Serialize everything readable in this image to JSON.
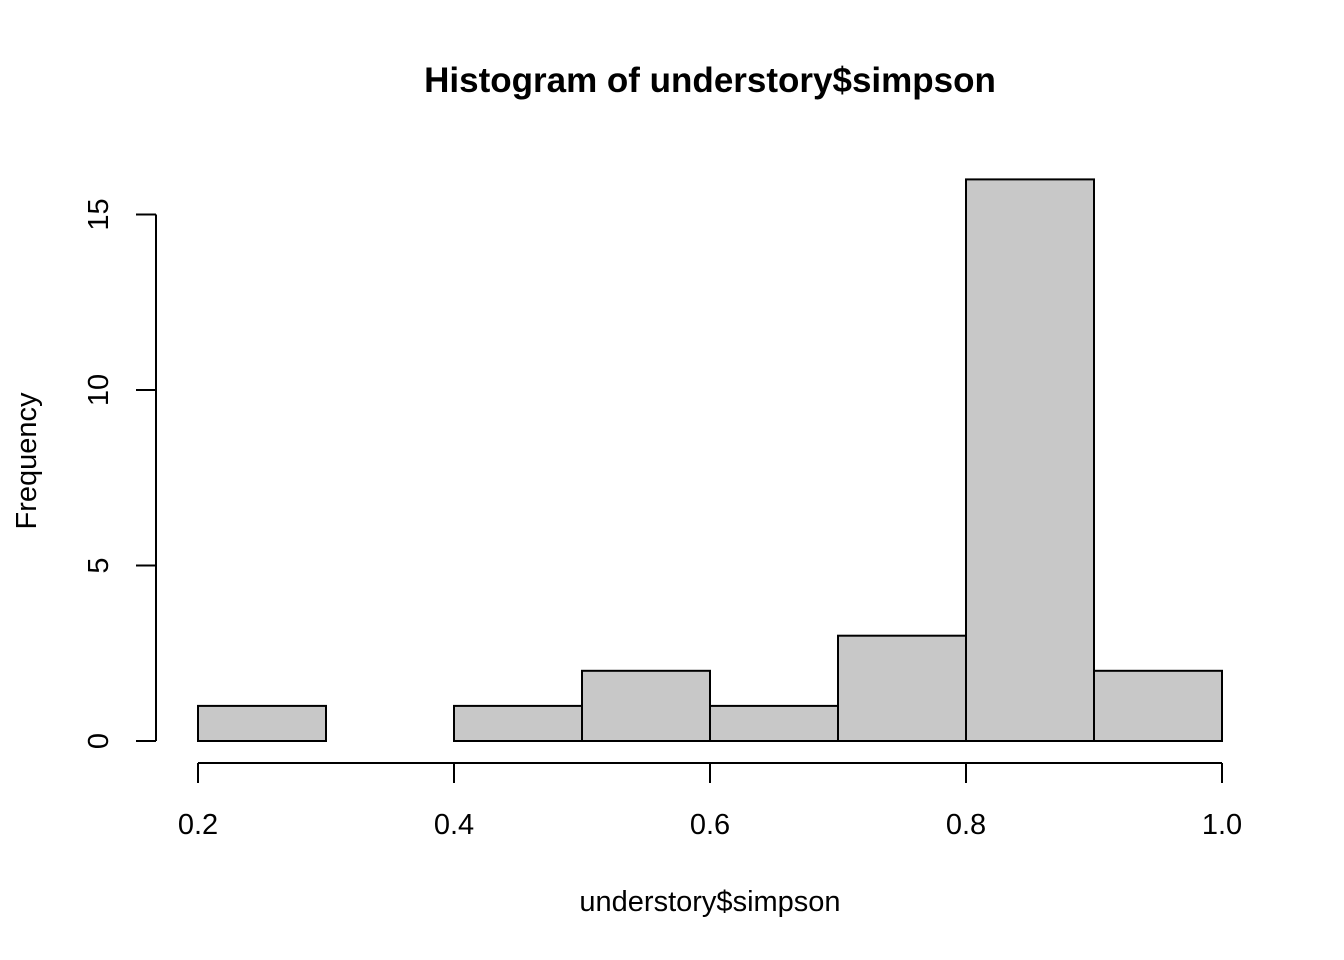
{
  "chart_data": {
    "type": "bar",
    "title": "Histogram of understory$simpson",
    "xlabel": "understory$simpson",
    "ylabel": "Frequency",
    "bins": [
      {
        "start": 0.2,
        "end": 0.3,
        "count": 1
      },
      {
        "start": 0.3,
        "end": 0.4,
        "count": 0
      },
      {
        "start": 0.4,
        "end": 0.5,
        "count": 1
      },
      {
        "start": 0.5,
        "end": 0.6,
        "count": 2
      },
      {
        "start": 0.6,
        "end": 0.7,
        "count": 1
      },
      {
        "start": 0.7,
        "end": 0.8,
        "count": 3
      },
      {
        "start": 0.8,
        "end": 0.9,
        "count": 16
      },
      {
        "start": 0.9,
        "end": 1.0,
        "count": 2
      }
    ],
    "xlim": [
      0.2,
      1.0
    ],
    "ylim": [
      0,
      16
    ],
    "x_ticks": [
      0.2,
      0.4,
      0.6,
      0.8,
      1.0
    ],
    "x_tick_labels": [
      "0.2",
      "0.4",
      "0.6",
      "0.8",
      "1.0"
    ],
    "y_ticks": [
      0,
      5,
      10,
      15
    ],
    "y_tick_labels": [
      "0",
      "5",
      "10",
      "15"
    ],
    "grid": false,
    "bar_color": "#c8c8c8",
    "edge_color": "#000000"
  }
}
